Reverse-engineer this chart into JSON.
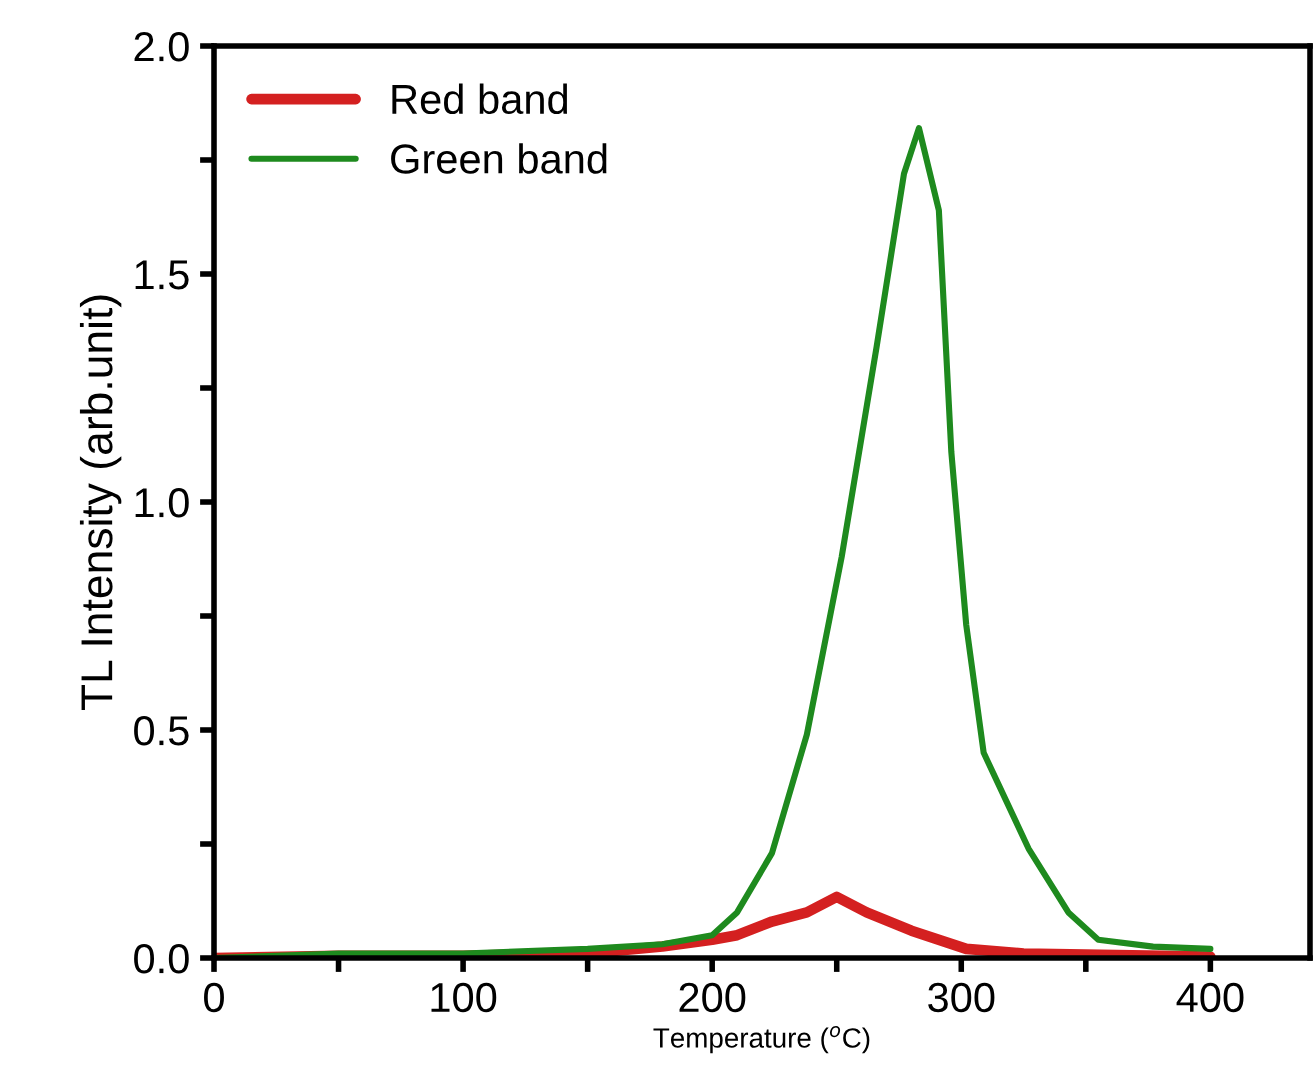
{
  "chart_data": {
    "type": "line",
    "xlabel": "Temperature ($^{o}$C)",
    "ylabel": "TL Intensity (arb.unit)",
    "xlim": [
      0,
      440
    ],
    "ylim": [
      0,
      2.0
    ],
    "xticks": [
      0,
      {
        "value": 50,
        "label": null
      },
      100,
      {
        "value": 150,
        "label": null
      },
      200,
      {
        "value": 250,
        "label": null
      },
      300,
      {
        "value": 350,
        "label": null
      },
      400
    ],
    "yticks": [
      {
        "value": 0,
        "label": "0.0"
      },
      {
        "value": 0.25,
        "label": null
      },
      0.5,
      {
        "value": 0.75,
        "label": null
      },
      {
        "value": 1,
        "label": "1.0"
      },
      {
        "value": 1.25,
        "label": null
      },
      1.5,
      {
        "value": 1.75,
        "label": null
      },
      {
        "value": 2,
        "label": "2.0"
      }
    ],
    "legend": "top left",
    "grid": false,
    "series": [
      {
        "name": "Red band",
        "color": "#d42020",
        "x": [
          0,
          50,
          100,
          150,
          180,
          200,
          210,
          224,
          238,
          250,
          262,
          280,
          302,
          325,
          400
        ],
        "values": [
          0.0,
          0.005,
          0.005,
          0.01,
          0.025,
          0.04,
          0.05,
          0.08,
          0.1,
          0.134,
          0.1,
          0.06,
          0.02,
          0.01,
          0.003
        ]
      },
      {
        "name": "Green band",
        "color": "#1e8a1e",
        "x": [
          0,
          50,
          100,
          150,
          180,
          200,
          210,
          224,
          238,
          252,
          266,
          277,
          283,
          291,
          296,
          302,
          309,
          327,
          343,
          355,
          377,
          400
        ],
        "values": [
          0.0,
          0.01,
          0.01,
          0.02,
          0.03,
          0.05,
          0.1,
          0.23,
          0.49,
          0.88,
          1.34,
          1.72,
          1.82,
          1.64,
          1.11,
          0.73,
          0.45,
          0.24,
          0.1,
          0.04,
          0.025,
          0.02
        ]
      }
    ]
  }
}
